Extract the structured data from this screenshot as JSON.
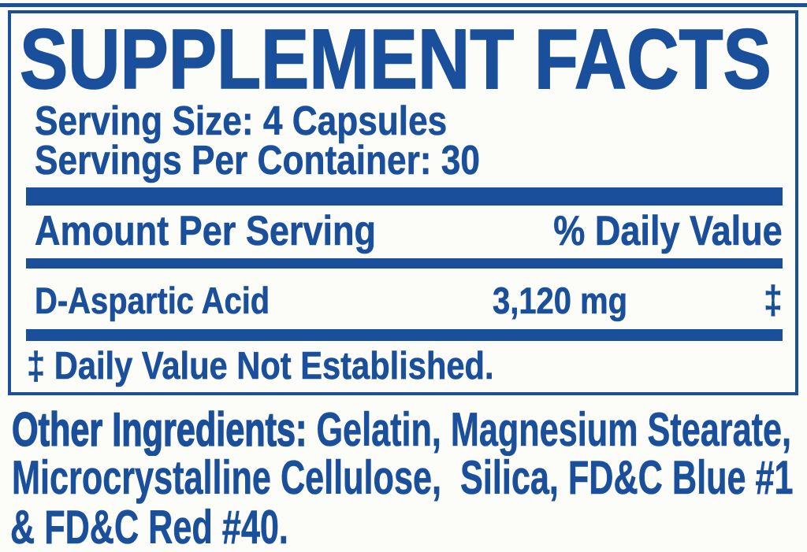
{
  "colors": {
    "accent_blue": "#1A4F9B",
    "page_bg": "#FCFCF8"
  },
  "panel": {
    "title": "SUPPLEMENT FACTS",
    "serving_size": "Serving Size: 4 Capsules",
    "servings_per_container": "Servings Per Container: 30",
    "columns": {
      "amount_header": "Amount Per Serving",
      "daily_value_header": "% Daily Value"
    },
    "rows": [
      {
        "name": "D-Aspartic Acid",
        "amount": "3,120 mg",
        "daily_value": "‡"
      }
    ],
    "footnote": "‡ Daily Value Not Established."
  },
  "other_ingredients": {
    "label": "Other Ingredients:",
    "line1_rest": " Gelatin, Magnesium Stearate,",
    "line2": "Microcrystalline Cellulose,  Silica, FD&C Blue #1",
    "line3": "& FD&C Red #40."
  }
}
